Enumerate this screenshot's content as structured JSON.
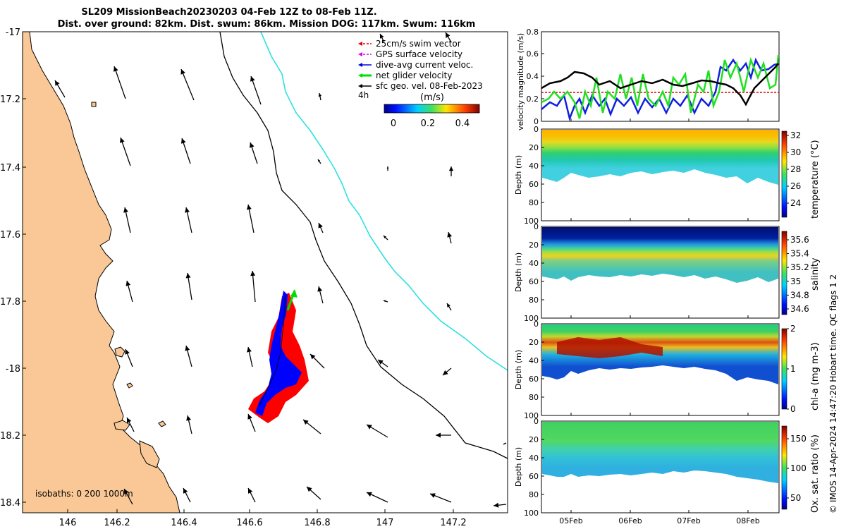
{
  "title": {
    "line1": "SL209 MissionBeach20230203 04-Feb 12Z to 08-Feb 11Z.",
    "line2": "Dist. over ground: 82km. Dist. swum: 86km. Mission DOG: 117km. Swum: 116km"
  },
  "map": {
    "legend": [
      {
        "label": "25cm/s swim vector",
        "color": "#e00000"
      },
      {
        "label": "GPS surface velocity",
        "color": "#e000e0"
      },
      {
        "label": "dive-avg current veloc.",
        "color": "#0000e0"
      },
      {
        "label": "net glider velocity",
        "color": "#00dd00"
      },
      {
        "label": "sfc geo. vel. 08-Feb-2023",
        "color": "#000000"
      }
    ],
    "legend_note": "4h",
    "colorbar": {
      "unit": "(m/s)",
      "ticks": [
        "0",
        "0.2",
        "0.4"
      ]
    },
    "isobaths_label": "isobaths: 0   200 1000m",
    "lat_ticks": [
      "-17",
      "17.2",
      "17.4",
      "17.6",
      "17.8",
      "-18",
      "18.2",
      "18.4"
    ],
    "lon_ticks": [
      "146",
      "146.2",
      "146.4",
      "146.6",
      "146.8",
      "147",
      "147.2"
    ],
    "colors": {
      "land": "#f9c896",
      "isobath_200": "#000000",
      "isobath_1000": "#2ee0e0"
    }
  },
  "panels": {
    "velocity": {
      "ylabel": "velocity magnitude (m/s)",
      "ticks": [
        "0.8",
        "0.6",
        "0.4",
        "0.2",
        "0"
      ]
    },
    "depth_ylabel": "Depth (m)",
    "depth_ticks": [
      "0",
      "20",
      "40",
      "60",
      "80",
      "100"
    ],
    "temperature": {
      "label": "temperature (°C)",
      "ticks": [
        "32",
        "30",
        "28",
        "26",
        "24"
      ]
    },
    "salinity": {
      "label": "salinity",
      "ticks": [
        "35.6",
        "35.4",
        "35.2",
        "35",
        "34.8",
        "34.6"
      ]
    },
    "chla": {
      "label": "chl-a (mg m-3)",
      "ticks": [
        "2",
        "1",
        "0"
      ]
    },
    "oxygen": {
      "label": "Ox. sat. ratio (%)",
      "ticks": [
        "150",
        "100",
        "50"
      ]
    },
    "time_ticks": [
      "05Feb",
      "06Feb",
      "07Feb",
      "08Feb"
    ]
  },
  "footer": "© IMOS 14-Apr-2024 14:47:20 Hobart time. QC flags 1  2"
}
